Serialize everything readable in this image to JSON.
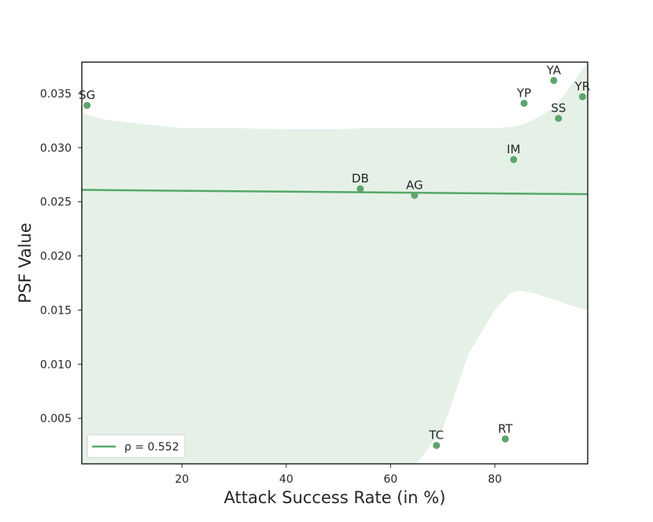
{
  "chart_data": {
    "type": "scatter",
    "xlabel": "Attack Success Rate (in %)",
    "ylabel": "PSF Value",
    "xlim": [
      0.8,
      97.8
    ],
    "ylim": [
      0.0008,
      0.0379
    ],
    "xticks": [
      20,
      40,
      60,
      80
    ],
    "yticks": [
      0.005,
      0.01,
      0.015,
      0.02,
      0.025,
      0.03,
      0.035
    ],
    "ytick_labels": [
      "0.005",
      "0.010",
      "0.015",
      "0.020",
      "0.025",
      "0.030",
      "0.035"
    ],
    "grid": false,
    "legend_position": "bottom-left",
    "legend_label": "ρ = 0.552",
    "colors": {
      "points": "#5da56c",
      "line": "#55a868",
      "band": "#e5f1e7",
      "axis": "#262626"
    },
    "points": [
      {
        "label": "SG",
        "x": 1.8,
        "y": 0.0339
      },
      {
        "label": "DB",
        "x": 54.2,
        "y": 0.0262
      },
      {
        "label": "AG",
        "x": 64.6,
        "y": 0.0256
      },
      {
        "label": "TC",
        "x": 68.8,
        "y": 0.0025
      },
      {
        "label": "RT",
        "x": 82.0,
        "y": 0.0031
      },
      {
        "label": "IM",
        "x": 83.6,
        "y": 0.0289
      },
      {
        "label": "YP",
        "x": 85.6,
        "y": 0.0341
      },
      {
        "label": "YA",
        "x": 91.3,
        "y": 0.0362
      },
      {
        "label": "SS",
        "x": 92.2,
        "y": 0.0327
      },
      {
        "label": "YR",
        "x": 96.8,
        "y": 0.0347
      }
    ],
    "regression_line": {
      "x": [
        0.8,
        97.8
      ],
      "y": [
        0.0261,
        0.0257
      ]
    },
    "confidence_band": {
      "x": [
        0.8,
        5.0,
        10.0,
        20.0,
        30.0,
        40.0,
        45.0,
        50.0,
        55.0,
        60.0,
        65.0,
        70.0,
        75.0,
        80.0,
        83.0,
        85.0,
        88.0,
        91.0,
        93.0,
        96.0,
        97.8
      ],
      "upper": [
        0.0332,
        0.0326,
        0.0323,
        0.0318,
        0.0318,
        0.0317,
        0.0317,
        0.0317,
        0.0318,
        0.0318,
        0.0318,
        0.0318,
        0.0318,
        0.0318,
        0.0319,
        0.0321,
        0.0327,
        0.0336,
        0.0347,
        0.0367,
        0.0379
      ],
      "lower": [
        0.0008,
        0.0008,
        0.0008,
        0.0008,
        0.0008,
        0.0008,
        0.0008,
        0.0008,
        0.0008,
        0.0008,
        0.0008,
        0.004,
        0.011,
        0.015,
        0.0166,
        0.0168,
        0.0165,
        0.016,
        0.0157,
        0.0152,
        0.015
      ]
    }
  }
}
